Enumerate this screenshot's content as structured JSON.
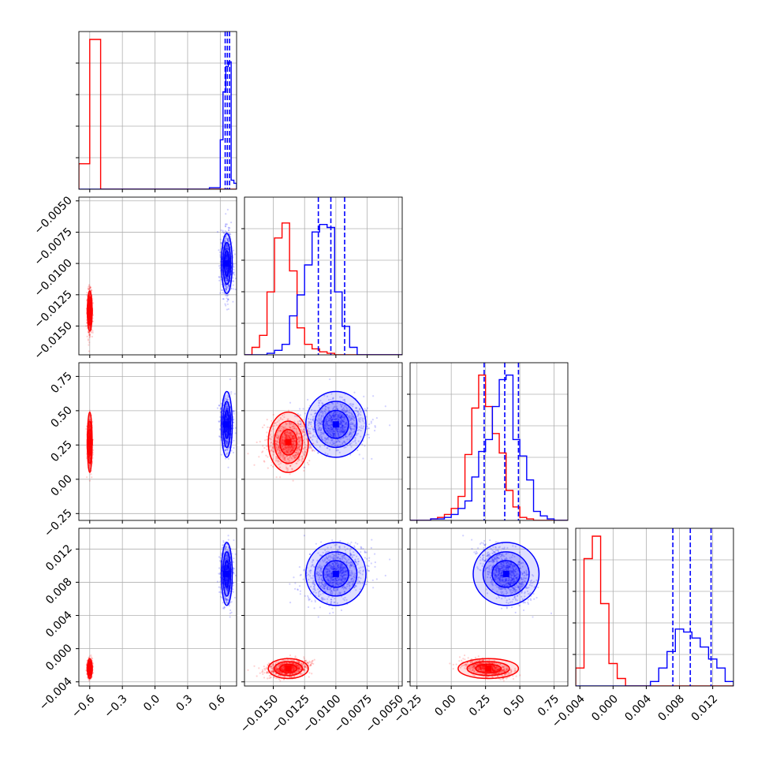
{
  "colors": {
    "red": "#ff0000",
    "blue": "#0000ff",
    "grid": "#b0b0b0",
    "frame": "#000000"
  },
  "chart_data": {
    "type": "corner",
    "title": "",
    "grid": true,
    "parameters": [
      {
        "range": [
          -0.7,
          0.75
        ],
        "ticks": [
          -0.6,
          -0.3,
          0.0,
          0.3,
          0.6
        ],
        "tick_labels": [
          "−0.6",
          "−0.3",
          "0.0",
          "0.3",
          "0.6"
        ]
      },
      {
        "range": [
          -0.0173,
          -0.0047
        ],
        "ticks": [
          -0.015,
          -0.0125,
          -0.01,
          -0.0075,
          -0.005
        ],
        "tick_labels": [
          "−0.0150",
          "−0.0125",
          "−0.0100",
          "−0.0075",
          "−0.0050"
        ]
      },
      {
        "range": [
          -0.3,
          0.85
        ],
        "ticks": [
          -0.25,
          0.0,
          0.25,
          0.5,
          0.75
        ],
        "tick_labels": [
          "−0.25",
          "0.00",
          "0.25",
          "0.50",
          "0.75"
        ]
      },
      {
        "range": [
          -0.0045,
          0.0145
        ],
        "ticks": [
          -0.004,
          0.0,
          0.004,
          0.008,
          0.012
        ],
        "tick_labels": [
          "−0.004",
          "0.000",
          "0.004",
          "0.008",
          "0.012"
        ]
      }
    ],
    "series": [
      {
        "color": "#ff0000",
        "center": [
          -0.6,
          -0.0138,
          0.27,
          -0.0024
        ],
        "spread": [
          0.01,
          0.0008,
          0.11,
          0.0006
        ]
      },
      {
        "color": "#0000ff",
        "center": [
          0.66,
          -0.01,
          0.4,
          0.009
        ],
        "spread": [
          0.025,
          0.0012,
          0.12,
          0.0019
        ]
      }
    ],
    "histograms": [
      {
        "bins": [
          -0.7,
          -0.6,
          -0.5,
          -0.4,
          -0.3,
          -0.2,
          -0.1,
          0.0,
          0.1,
          0.2,
          0.3,
          0.4,
          0.5,
          0.6,
          0.625,
          0.65,
          0.675,
          0.7,
          0.725,
          0.75
        ],
        "red": [
          0.17,
          1.0,
          0,
          0,
          0,
          0,
          0,
          0,
          0,
          0,
          0,
          0,
          0,
          0,
          0,
          0,
          0,
          0,
          0
        ],
        "blue": [
          0,
          0,
          0,
          0,
          0,
          0,
          0,
          0,
          0,
          0,
          0,
          0,
          0.01,
          0.33,
          0.65,
          0.82,
          0.85,
          0.06,
          0.04
        ],
        "quantiles": [
          0.645,
          0.665,
          0.685
        ]
      },
      {
        "bins": [
          -0.0173,
          -0.0167,
          -0.0161,
          -0.0155,
          -0.0149,
          -0.0143,
          -0.0137,
          -0.0131,
          -0.0125,
          -0.0119,
          -0.0113,
          -0.0107,
          -0.0101,
          -0.0095,
          -0.0089,
          -0.0083,
          -0.0077,
          -0.0071,
          -0.0065,
          -0.0059,
          -0.0053,
          -0.0047
        ],
        "red": [
          0.0,
          0.05,
          0.13,
          0.42,
          0.78,
          0.88,
          0.56,
          0.18,
          0.07,
          0.04,
          0.02,
          0.01,
          0.0,
          0.0,
          0.0,
          0.0,
          0.0,
          0.0,
          0.0,
          0.0,
          0.0
        ],
        "blue": [
          0.0,
          0.0,
          0.0,
          0.01,
          0.03,
          0.07,
          0.26,
          0.4,
          0.6,
          0.82,
          0.87,
          0.85,
          0.42,
          0.19,
          0.05,
          0.0,
          0.0,
          0.0,
          0.0,
          0.0,
          0.0
        ],
        "quantiles": [
          -0.0114,
          -0.0104,
          -0.0093
        ]
      },
      {
        "bins": [
          -0.3,
          -0.25,
          -0.2,
          -0.15,
          -0.1,
          -0.05,
          0.0,
          0.05,
          0.1,
          0.15,
          0.2,
          0.25,
          0.3,
          0.35,
          0.4,
          0.45,
          0.5,
          0.55,
          0.6,
          0.65,
          0.7,
          0.75,
          0.8,
          0.85
        ],
        "red": [
          0.0,
          0.0,
          0.0,
          0.01,
          0.02,
          0.04,
          0.08,
          0.16,
          0.44,
          0.75,
          0.97,
          0.76,
          0.58,
          0.45,
          0.2,
          0.09,
          0.02,
          0.01,
          0.0,
          0.0,
          0.0,
          0.0,
          0.0
        ],
        "blue": [
          0.0,
          0.0,
          0.0,
          0.01,
          0.01,
          0.02,
          0.04,
          0.08,
          0.13,
          0.29,
          0.46,
          0.54,
          0.76,
          0.94,
          0.97,
          0.54,
          0.43,
          0.27,
          0.06,
          0.03,
          0.01,
          0.0,
          0.0
        ],
        "quantiles": [
          0.24,
          0.39,
          0.49
        ]
      },
      {
        "bins": [
          -0.0045,
          -0.0035,
          -0.0025,
          -0.0015,
          -0.0005,
          0.0005,
          0.0015,
          0.0025,
          0.0035,
          0.0045,
          0.0055,
          0.0065,
          0.0075,
          0.0085,
          0.0095,
          0.0105,
          0.0115,
          0.0125,
          0.0135,
          0.0145
        ],
        "red": [
          0.12,
          0.85,
          1.0,
          0.55,
          0.15,
          0.05,
          0.0,
          0.0,
          0.0,
          0.0,
          0.0,
          0.0,
          0.0,
          0.0,
          0.0,
          0.0,
          0.0,
          0.0,
          0.0
        ],
        "blue": [
          0.0,
          0.0,
          0.0,
          0.0,
          0.0,
          0.0,
          0.0,
          0.0,
          0.0,
          0.03,
          0.12,
          0.23,
          0.38,
          0.36,
          0.32,
          0.26,
          0.18,
          0.12,
          0.03
        ],
        "quantiles": [
          0.0072,
          0.0093,
          0.0118
        ]
      }
    ]
  }
}
